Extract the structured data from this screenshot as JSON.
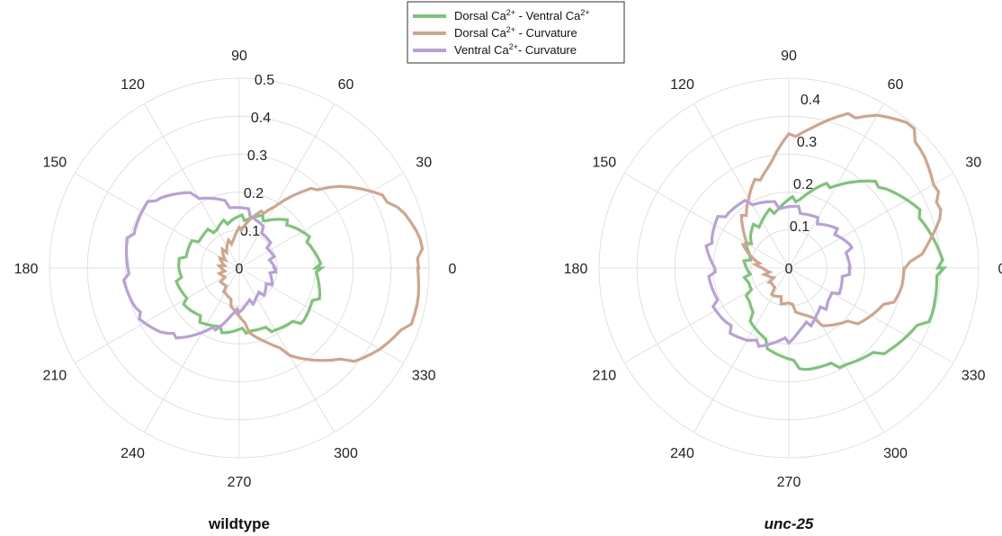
{
  "legend": {
    "entries": [
      {
        "label": "Dorsal Ca2+ - Ventral Ca2+",
        "parts": [
          "Dorsal Ca",
          "2+",
          " - Ventral Ca",
          "2+"
        ],
        "color": "#7dc478"
      },
      {
        "label": "Dorsal Ca2+ - Curvature",
        "parts": [
          "Dorsal Ca",
          "2+",
          " - Curvature"
        ],
        "color": "#cfa58e"
      },
      {
        "label": "Ventral Ca2+- Curvature",
        "parts": [
          "Ventral Ca",
          "2+",
          "- Curvature"
        ],
        "color": "#b7a1d8"
      }
    ]
  },
  "colors": {
    "grid": "#e0e0e0",
    "dorsal_ventral": "#7dc478",
    "dorsal_curvature": "#cfa58e",
    "ventral_curvature": "#b7a1d8"
  },
  "chart_data": [
    {
      "type": "polar-line",
      "title": "wildtype",
      "title_italic": false,
      "angle_unit": "degrees",
      "angle_ticks": [
        "0",
        "30",
        "60",
        "90",
        "120",
        "150",
        "180",
        "210",
        "240",
        "270",
        "300",
        "330"
      ],
      "radial_ticks": [
        "0",
        "0.1",
        "0.2",
        "0.3",
        "0.4",
        "0.5"
      ],
      "rlim": [
        0,
        0.5
      ],
      "grid": true,
      "series": [
        {
          "key": "dorsal_ventral",
          "theta": [
            0,
            20,
            40,
            60,
            80,
            100,
            120,
            140,
            160,
            180,
            200,
            220,
            240,
            260,
            280,
            300,
            320,
            340
          ],
          "r": [
            0.21,
            0.2,
            0.18,
            0.15,
            0.135,
            0.13,
            0.12,
            0.13,
            0.145,
            0.16,
            0.165,
            0.17,
            0.17,
            0.17,
            0.165,
            0.185,
            0.215,
            0.22
          ]
        },
        {
          "key": "dorsal_curvature",
          "theta": [
            0,
            10,
            20,
            30,
            40,
            50,
            60,
            70,
            80,
            90,
            100,
            120,
            150,
            180,
            210,
            240,
            260,
            270,
            280,
            290,
            300,
            310,
            320,
            330,
            340,
            350
          ],
          "r": [
            0.48,
            0.48,
            0.46,
            0.4,
            0.34,
            0.26,
            0.19,
            0.15,
            0.125,
            0.1,
            0.08,
            0.065,
            0.05,
            0.045,
            0.05,
            0.07,
            0.1,
            0.13,
            0.17,
            0.21,
            0.26,
            0.32,
            0.38,
            0.43,
            0.47,
            0.48
          ]
        },
        {
          "key": "ventral_curvature",
          "theta": [
            0,
            20,
            40,
            60,
            80,
            90,
            100,
            120,
            140,
            160,
            180,
            200,
            220,
            240,
            260,
            270,
            280,
            300,
            320,
            340
          ],
          "r": [
            0.09,
            0.09,
            0.1,
            0.12,
            0.15,
            0.16,
            0.17,
            0.22,
            0.29,
            0.3,
            0.3,
            0.3,
            0.27,
            0.2,
            0.13,
            0.11,
            0.1,
            0.09,
            0.09,
            0.09
          ]
        }
      ]
    },
    {
      "type": "polar-line",
      "title": "unc-25",
      "title_italic": true,
      "angle_unit": "degrees",
      "angle_ticks": [
        "0",
        "30",
        "60",
        "90",
        "120",
        "150",
        "180",
        "210",
        "240",
        "270",
        "300",
        "330"
      ],
      "radial_ticks": [
        "0",
        "0.1",
        "0.2",
        "0.3",
        "0.4"
      ],
      "rlim": [
        0,
        0.45
      ],
      "grid": true,
      "series": [
        {
          "key": "dorsal_ventral",
          "theta": [
            0,
            20,
            40,
            60,
            80,
            100,
            120,
            140,
            160,
            180,
            200,
            220,
            240,
            260,
            280,
            300,
            320,
            340
          ],
          "r": [
            0.36,
            0.34,
            0.3,
            0.23,
            0.17,
            0.145,
            0.13,
            0.12,
            0.1,
            0.1,
            0.1,
            0.12,
            0.16,
            0.2,
            0.24,
            0.26,
            0.3,
            0.35
          ]
        },
        {
          "key": "dorsal_curvature",
          "theta": [
            0,
            10,
            20,
            30,
            40,
            50,
            60,
            70,
            80,
            90,
            100,
            110,
            120,
            140,
            160,
            180,
            200,
            220,
            240,
            260,
            270,
            280,
            290,
            300,
            320,
            340,
            350
          ],
          "r": [
            0.28,
            0.33,
            0.39,
            0.39,
            0.42,
            0.44,
            0.42,
            0.38,
            0.34,
            0.31,
            0.25,
            0.22,
            0.19,
            0.14,
            0.1,
            0.06,
            0.05,
            0.05,
            0.07,
            0.08,
            0.085,
            0.1,
            0.12,
            0.15,
            0.2,
            0.25,
            0.27
          ]
        },
        {
          "key": "ventral_curvature",
          "theta": [
            0,
            20,
            40,
            60,
            80,
            100,
            120,
            140,
            160,
            180,
            200,
            220,
            240,
            260,
            270,
            280,
            300,
            320,
            340
          ],
          "r": [
            0.14,
            0.15,
            0.14,
            0.13,
            0.14,
            0.15,
            0.18,
            0.2,
            0.2,
            0.18,
            0.19,
            0.2,
            0.2,
            0.18,
            0.17,
            0.15,
            0.13,
            0.12,
            0.13
          ]
        }
      ]
    }
  ]
}
